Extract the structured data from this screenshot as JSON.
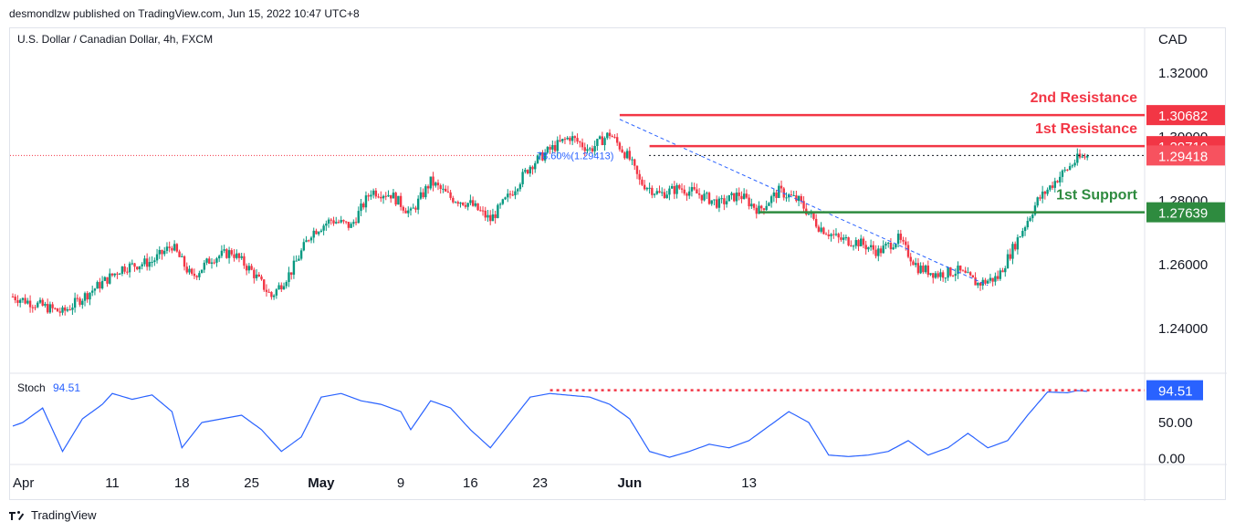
{
  "header": {
    "publisher": "desmondlzw published on TradingView.com, Jun 15, 2022 10:47 UTC+8"
  },
  "footer": {
    "brand": "TradingView"
  },
  "chart_data": [
    {
      "type": "candlestick",
      "title": "U.S. Dollar / Canadian Dollar, 4h, FXCM",
      "currency": "CAD",
      "ylim": [
        1.226,
        1.334
      ],
      "y_ticks": [
        "1.32000",
        "1.30000",
        "1.28000",
        "1.26000",
        "1.24000"
      ],
      "x_ticks": [
        "Apr",
        "11",
        "18",
        "25",
        "May",
        "9",
        "16",
        "23",
        "Jun",
        "13"
      ],
      "grid": false,
      "colors": {
        "up": "#089981",
        "down": "#f23645",
        "resistance": "#f23645",
        "support": "#2e8b3f",
        "fib": "#2962ff",
        "stoch": "#2962ff"
      },
      "anchors": [
        {
          "day": 0,
          "close": 1.25
        },
        {
          "day": 2,
          "close": 1.248
        },
        {
          "day": 5,
          "close": 1.245
        },
        {
          "day": 8,
          "close": 1.252
        },
        {
          "day": 11,
          "close": 1.259
        },
        {
          "day": 14,
          "close": 1.261
        },
        {
          "day": 16,
          "close": 1.266
        },
        {
          "day": 18,
          "close": 1.256
        },
        {
          "day": 20,
          "close": 1.262
        },
        {
          "day": 22,
          "close": 1.264
        },
        {
          "day": 24,
          "close": 1.258
        },
        {
          "day": 26,
          "close": 1.25
        },
        {
          "day": 28,
          "close": 1.258
        },
        {
          "day": 30,
          "close": 1.27
        },
        {
          "day": 32,
          "close": 1.274
        },
        {
          "day": 34,
          "close": 1.272
        },
        {
          "day": 36,
          "close": 1.283
        },
        {
          "day": 38,
          "close": 1.282
        },
        {
          "day": 40,
          "close": 1.276
        },
        {
          "day": 42,
          "close": 1.286
        },
        {
          "day": 44,
          "close": 1.281
        },
        {
          "day": 46,
          "close": 1.279
        },
        {
          "day": 48,
          "close": 1.274
        },
        {
          "day": 50,
          "close": 1.282
        },
        {
          "day": 52,
          "close": 1.291
        },
        {
          "day": 54,
          "close": 1.296
        },
        {
          "day": 56,
          "close": 1.3
        },
        {
          "day": 58,
          "close": 1.296
        },
        {
          "day": 60,
          "close": 1.301
        },
        {
          "day": 62,
          "close": 1.293
        },
        {
          "day": 63,
          "close": 1.286
        },
        {
          "day": 65,
          "close": 1.282
        },
        {
          "day": 67,
          "close": 1.284
        },
        {
          "day": 69,
          "close": 1.282
        },
        {
          "day": 71,
          "close": 1.279
        },
        {
          "day": 73,
          "close": 1.282
        },
        {
          "day": 75,
          "close": 1.277
        },
        {
          "day": 77,
          "close": 1.283
        },
        {
          "day": 79,
          "close": 1.28
        },
        {
          "day": 81,
          "close": 1.272
        },
        {
          "day": 83,
          "close": 1.268
        },
        {
          "day": 85,
          "close": 1.267
        },
        {
          "day": 87,
          "close": 1.264
        },
        {
          "day": 89,
          "close": 1.268
        },
        {
          "day": 91,
          "close": 1.259
        },
        {
          "day": 93,
          "close": 1.257
        },
        {
          "day": 95,
          "close": 1.258
        },
        {
          "day": 97,
          "close": 1.254
        },
        {
          "day": 99,
          "close": 1.256
        },
        {
          "day": 101,
          "close": 1.268
        },
        {
          "day": 103,
          "close": 1.28
        },
        {
          "day": 105,
          "close": 1.287
        },
        {
          "day": 107,
          "close": 1.293
        },
        {
          "day": 108,
          "close": 1.294
        }
      ],
      "levels": [
        {
          "label": "2nd Resistance",
          "value": 1.30682,
          "value_text": "1.30682",
          "color": "#f23645"
        },
        {
          "label": "1st Resistance",
          "value": 1.2971,
          "value_text": "1.29710",
          "color": "#f23645"
        },
        {
          "label": "1st Support",
          "value": 1.27639,
          "value_text": "1.27639",
          "color": "#2e8b3f"
        }
      ],
      "last_price": {
        "value": 1.29418,
        "value_text": "1.29418"
      },
      "fib_label": "78.60%(1.29413)",
      "stochastic": {
        "label": "Stoch",
        "value_text": "94.51",
        "value": 94.51,
        "ylim": [
          -8,
          118
        ],
        "y_ticks": [
          "50.00",
          "0.00"
        ],
        "anchors": [
          {
            "day": 0,
            "v": 45
          },
          {
            "day": 1,
            "v": 50
          },
          {
            "day": 3,
            "v": 70
          },
          {
            "day": 5,
            "v": 10
          },
          {
            "day": 7,
            "v": 55
          },
          {
            "day": 9,
            "v": 75
          },
          {
            "day": 10,
            "v": 90
          },
          {
            "day": 12,
            "v": 82
          },
          {
            "day": 14,
            "v": 88
          },
          {
            "day": 16,
            "v": 65
          },
          {
            "day": 17,
            "v": 15
          },
          {
            "day": 19,
            "v": 50
          },
          {
            "day": 21,
            "v": 55
          },
          {
            "day": 23,
            "v": 60
          },
          {
            "day": 25,
            "v": 40
          },
          {
            "day": 27,
            "v": 10
          },
          {
            "day": 29,
            "v": 30
          },
          {
            "day": 31,
            "v": 85
          },
          {
            "day": 33,
            "v": 90
          },
          {
            "day": 35,
            "v": 80
          },
          {
            "day": 37,
            "v": 75
          },
          {
            "day": 39,
            "v": 65
          },
          {
            "day": 40,
            "v": 40
          },
          {
            "day": 42,
            "v": 80
          },
          {
            "day": 44,
            "v": 70
          },
          {
            "day": 46,
            "v": 40
          },
          {
            "day": 48,
            "v": 15
          },
          {
            "day": 50,
            "v": 50
          },
          {
            "day": 52,
            "v": 85
          },
          {
            "day": 54,
            "v": 90
          },
          {
            "day": 58,
            "v": 85
          },
          {
            "day": 60,
            "v": 75
          },
          {
            "day": 62,
            "v": 55
          },
          {
            "day": 64,
            "v": 10
          },
          {
            "day": 66,
            "v": 2
          },
          {
            "day": 68,
            "v": 10
          },
          {
            "day": 70,
            "v": 20
          },
          {
            "day": 72,
            "v": 15
          },
          {
            "day": 74,
            "v": 25
          },
          {
            "day": 76,
            "v": 45
          },
          {
            "day": 78,
            "v": 65
          },
          {
            "day": 80,
            "v": 50
          },
          {
            "day": 82,
            "v": 5
          },
          {
            "day": 84,
            "v": 3
          },
          {
            "day": 86,
            "v": 5
          },
          {
            "day": 88,
            "v": 10
          },
          {
            "day": 90,
            "v": 25
          },
          {
            "day": 92,
            "v": 5
          },
          {
            "day": 94,
            "v": 15
          },
          {
            "day": 96,
            "v": 35
          },
          {
            "day": 98,
            "v": 15
          },
          {
            "day": 100,
            "v": 25
          },
          {
            "day": 102,
            "v": 60
          },
          {
            "day": 104,
            "v": 92
          },
          {
            "day": 106,
            "v": 91
          },
          {
            "day": 107,
            "v": 94
          },
          {
            "day": 108,
            "v": 93
          }
        ]
      }
    }
  ]
}
